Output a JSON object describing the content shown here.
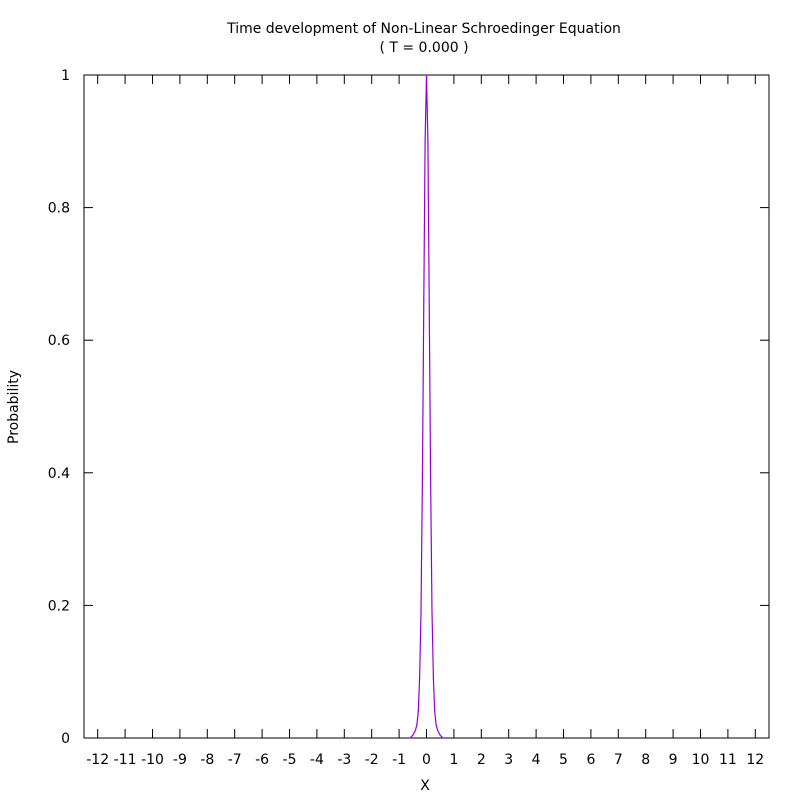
{
  "chart_data": {
    "type": "line",
    "title": "Time development of Non-Linear Schroedinger Equation",
    "subtitle": "( T = 0.000 )",
    "xlabel": "X",
    "ylabel": "Probability",
    "xlim": [
      -12.5,
      12.5
    ],
    "ylim": [
      0,
      1
    ],
    "xticks": [
      -12,
      -11,
      -10,
      -9,
      -8,
      -7,
      -6,
      -5,
      -4,
      -3,
      -2,
      -1,
      0,
      1,
      2,
      3,
      4,
      5,
      6,
      7,
      8,
      9,
      10,
      11,
      12
    ],
    "xtick_labels": [
      "-12",
      "-11",
      "-10",
      "-9",
      "-8",
      "-7",
      "-6",
      "-5",
      "-4",
      "-3",
      "-2",
      "-1",
      "0",
      "1",
      "2",
      "3",
      "4",
      "5",
      "6",
      "7",
      "8",
      "9",
      "10",
      "11",
      "12"
    ],
    "yticks": [
      0,
      0.2,
      0.4,
      0.6,
      0.8,
      1
    ],
    "ytick_labels": [
      "0",
      "0.2",
      "0.4",
      "0.6",
      "0.8",
      "1"
    ],
    "grid": false,
    "line_color": "#9400d3",
    "series": [
      {
        "x": [
          -0.6,
          -0.5,
          -0.4,
          -0.35,
          -0.3,
          -0.25,
          -0.2,
          -0.15,
          -0.1,
          -0.05,
          0,
          0.05,
          0.1,
          0.15,
          0.2,
          0.25,
          0.3,
          0.35,
          0.4,
          0.5,
          0.6
        ],
        "y": [
          0,
          0.004,
          0.012,
          0.02,
          0.04,
          0.09,
          0.19,
          0.39,
          0.66,
          0.9,
          1.0,
          0.9,
          0.66,
          0.39,
          0.19,
          0.09,
          0.04,
          0.02,
          0.012,
          0.004,
          0
        ]
      }
    ]
  }
}
